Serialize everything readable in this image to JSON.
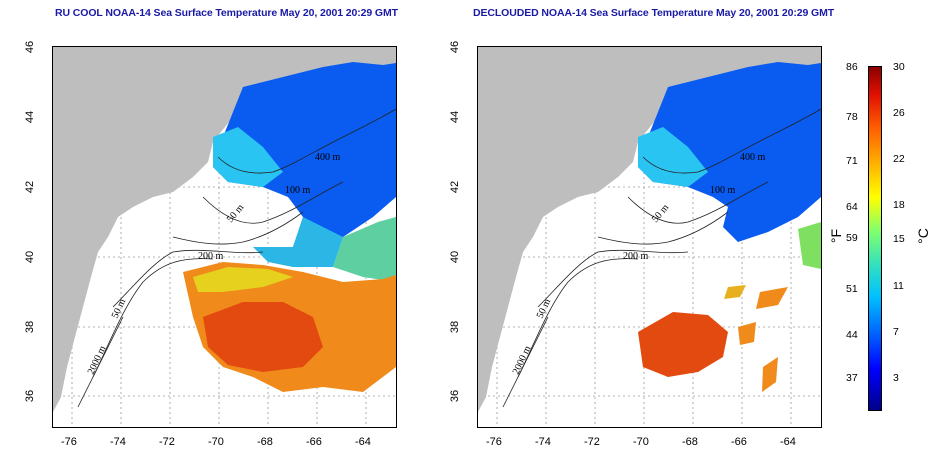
{
  "left_map": {
    "title": "RU COOL NOAA-14 Sea Surface Temperature May 20, 2001 20:29 GMT",
    "contour_labels": [
      "400 m",
      "100 m",
      "50 m",
      "200 m",
      "50 m",
      "2000 m"
    ]
  },
  "right_map": {
    "title": "DECLOUDED NOAA-14 Sea Surface Temperature May 20, 2001 20:29 GMT",
    "contour_labels": [
      "400 m",
      "100 m",
      "50 m",
      "200 m",
      "50 m",
      "2000 m"
    ]
  },
  "x_ticks": [
    "-76",
    "-74",
    "-72",
    "-70",
    "-68",
    "-66",
    "-64"
  ],
  "y_ticks": [
    "46",
    "44",
    "42",
    "40",
    "38",
    "36"
  ],
  "colorbar": {
    "fahrenheit_ticks": [
      "86",
      "78",
      "71",
      "64",
      "59",
      "51",
      "44",
      "37"
    ],
    "celsius_ticks": [
      "30",
      "26",
      "22",
      "18",
      "15",
      "11",
      "7",
      "3"
    ],
    "fahrenheit_unit": "°F",
    "celsius_unit": "°C",
    "colors": {
      "low": "#00008a",
      "mid": "#7fff70",
      "high": "#8a0000"
    }
  },
  "colors": {
    "land": "#bebebe",
    "title": "#1a1aa6",
    "cold_water": "#0a5bf0",
    "cool_water": "#29c4f2",
    "warm_water": "#f08a1a",
    "hot_water": "#e24a10"
  }
}
